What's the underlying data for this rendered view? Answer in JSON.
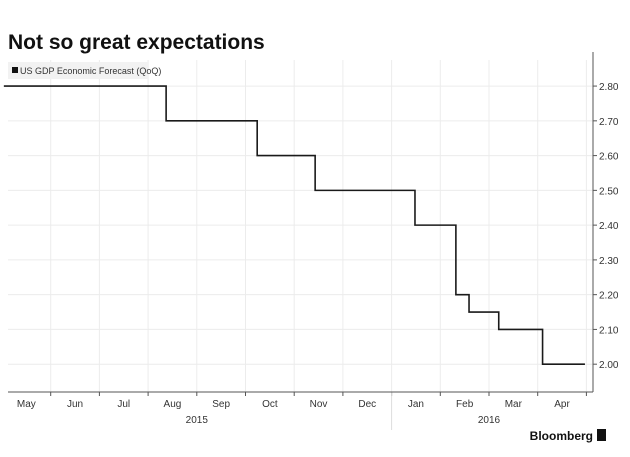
{
  "chart_data": {
    "type": "line",
    "step": true,
    "title": "Not so great expectations",
    "legend": [
      {
        "label": "US GDP Economic Forecast (QoQ)",
        "color": "#1a1a1a"
      }
    ],
    "legend_placement": "top-left",
    "x_unit": "months since start of May 2015",
    "x_months": [
      "May",
      "Jun",
      "Jul",
      "Aug",
      "Sep",
      "Oct",
      "Nov",
      "Dec",
      "Jan",
      "Feb",
      "Mar",
      "Apr"
    ],
    "x_years": [
      {
        "label": "2015",
        "center_month": 4.0
      },
      {
        "label": "2016",
        "center_month": 10.0
      }
    ],
    "xlim": [
      0,
      12.3
    ],
    "ylim": [
      1.92,
      2.875
    ],
    "yticks": [
      "2.00",
      "2.10",
      "2.20",
      "2.30",
      "2.40",
      "2.50",
      "2.60",
      "2.70",
      "2.80"
    ],
    "grid": true,
    "axis_side": "right",
    "points": [
      {
        "x": 0.12,
        "y": 2.8
      },
      {
        "x": 3.37,
        "y": 2.7
      },
      {
        "x": 5.24,
        "y": 2.6
      },
      {
        "x": 6.43,
        "y": 2.5
      },
      {
        "x": 8.48,
        "y": 2.4
      },
      {
        "x": 9.32,
        "y": 2.2
      },
      {
        "x": 9.59,
        "y": 2.15
      },
      {
        "x": 10.2,
        "y": 2.1
      },
      {
        "x": 11.1,
        "y": 2.0
      },
      {
        "x": 11.97,
        "y": 2.0
      }
    ],
    "source": "Bloomberg"
  }
}
